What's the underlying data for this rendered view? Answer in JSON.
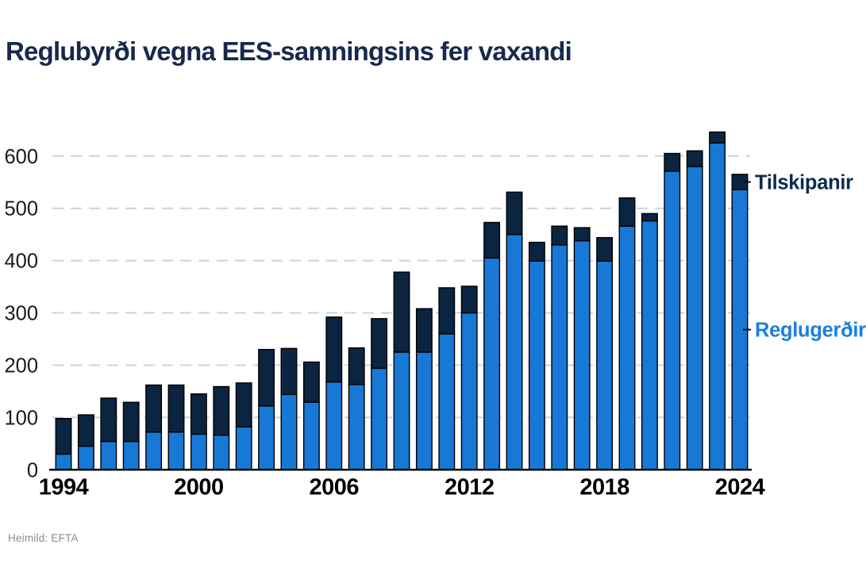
{
  "title": "Reglubyrði vegna EES-samningsins fer vaxandi",
  "source": "Heimild: EFTA",
  "legend": {
    "tilskipanir_label": "Tilskipanir",
    "reglugerdir_label": "Reglugerðir"
  },
  "colors": {
    "reglugerdir_fill": "#1878d6",
    "tilskipanir_fill": "#0b2440",
    "bar_outline": "#000000",
    "title_text": "#17294d",
    "grid_line": "#c9d3df",
    "axis_line": "#000000",
    "y_tick_text": "#1a1a1a",
    "x_tick_text": "#000000",
    "legend_tilskipanir_text": "#0f2a4d",
    "legend_reglugerdir_text": "#1b7fdd",
    "source_text": "#8c8c8c",
    "background": "#ffffff"
  },
  "chart_data": {
    "type": "bar",
    "stacked": true,
    "title": "Reglubyrði vegna EES-samningsins fer vaxandi",
    "xlabel": "",
    "ylabel": "",
    "categories": [
      1994,
      1995,
      1996,
      1997,
      1998,
      1999,
      2000,
      2001,
      2002,
      2003,
      2004,
      2005,
      2006,
      2007,
      2008,
      2009,
      2010,
      2011,
      2012,
      2013,
      2014,
      2015,
      2016,
      2017,
      2018,
      2019,
      2020,
      2021,
      2022,
      2023,
      2024
    ],
    "series": [
      {
        "name": "Reglugerðir",
        "color": "#1878d6",
        "values": [
          30,
          45,
          54,
          54,
          72,
          72,
          68,
          66,
          82,
          122,
          144,
          129,
          168,
          163,
          194,
          225,
          225,
          260,
          300,
          405,
          450,
          399,
          430,
          438,
          399,
          466,
          476,
          571,
          580,
          625,
          536
        ]
      },
      {
        "name": "Tilskipanir",
        "color": "#0b2440",
        "values": [
          68,
          60,
          83,
          75,
          90,
          90,
          77,
          93,
          84,
          108,
          88,
          77,
          124,
          70,
          95,
          153,
          83,
          88,
          51,
          68,
          81,
          36,
          36,
          25,
          45,
          54,
          14,
          34,
          30,
          21,
          29
        ]
      }
    ],
    "stacked_totals": [
      98,
      105,
      137,
      129,
      162,
      162,
      145,
      159,
      166,
      230,
      232,
      206,
      292,
      233,
      289,
      378,
      308,
      348,
      351,
      473,
      531,
      435,
      466,
      463,
      444,
      520,
      490,
      605,
      610,
      646,
      565
    ],
    "y_ticks": [
      0,
      100,
      200,
      300,
      400,
      500,
      600
    ],
    "ylim": [
      0,
      660
    ],
    "x_tick_labels": [
      "1994",
      "2000",
      "2006",
      "2012",
      "2018",
      "2024"
    ],
    "x_tick_years": [
      1994,
      2000,
      2006,
      2012,
      2018,
      2024
    ],
    "grid": "horizontal dashed",
    "legend_position": "right of last bar, aligned to 2024 segments"
  }
}
